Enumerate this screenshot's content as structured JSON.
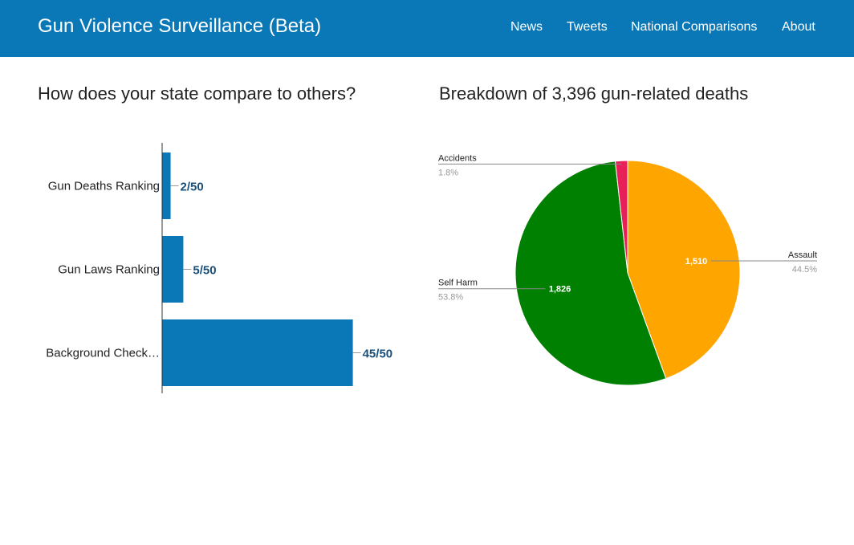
{
  "navbar": {
    "brand": "Gun Violence Surveillance (Beta)",
    "items": [
      "News",
      "Tweets",
      "National Comparisons",
      "About"
    ],
    "color": "#0a78b6"
  },
  "left_heading": "How does your state compare to others?",
  "right_heading": "Breakdown of 3,396 gun-related deaths",
  "chart_data": [
    {
      "type": "bar",
      "orientation": "horizontal",
      "categories": [
        "Gun Deaths Ranking",
        "Gun Laws Ranking",
        "Background Check…"
      ],
      "values": [
        2,
        5,
        45
      ],
      "labels": [
        "2/50",
        "5/50",
        "45/50"
      ],
      "xlim": [
        0,
        50
      ],
      "color": "#0a78b6",
      "label_color": "#1a4f7a"
    },
    {
      "type": "pie",
      "categories": [
        "Assault",
        "Self Harm",
        "Accidents"
      ],
      "values": [
        1510,
        1826,
        60
      ],
      "inner_labels": [
        "1,510",
        "1,826",
        ""
      ],
      "percents": [
        "44.5%",
        "53.8%",
        "1.8%"
      ],
      "colors": [
        "#ffa500",
        "#008000",
        "#e8205a"
      ]
    }
  ]
}
